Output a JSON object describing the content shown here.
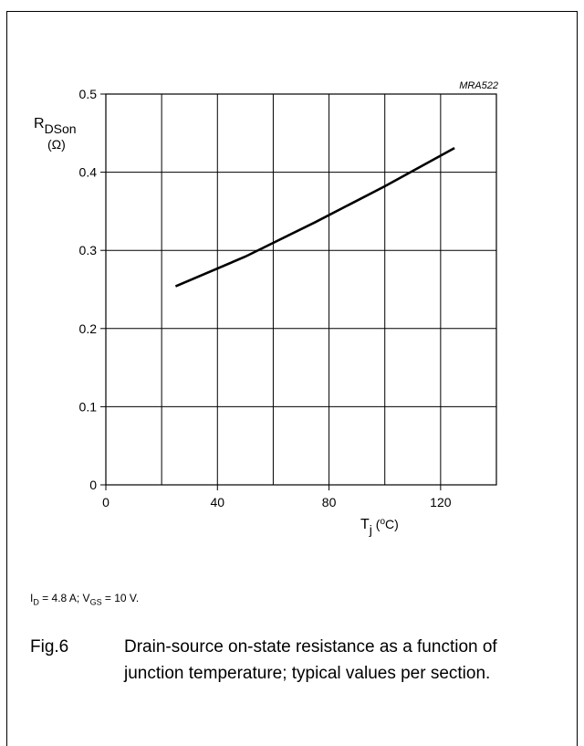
{
  "chart_data": {
    "type": "line",
    "code": "MRA522",
    "ylabel_main": "R",
    "ylabel_sub": "DSon",
    "ylabel_unit": "(Ω)",
    "xlabel_main": "T",
    "xlabel_sub": "j",
    "xlabel_unit_open": " (",
    "xlabel_unit_sup": "o",
    "xlabel_unit_close": "C)",
    "xlim": [
      0,
      140
    ],
    "ylim": [
      0,
      0.5
    ],
    "x_ticks": [
      {
        "value": 0,
        "label": "0"
      },
      {
        "value": 40,
        "label": "40"
      },
      {
        "value": 80,
        "label": "80"
      },
      {
        "value": 120,
        "label": "120"
      }
    ],
    "x_grid": [
      20,
      40,
      60,
      80,
      100,
      120
    ],
    "y_ticks": [
      {
        "value": 0,
        "label": "0"
      },
      {
        "value": 0.1,
        "label": "0.1"
      },
      {
        "value": 0.2,
        "label": "0.2"
      },
      {
        "value": 0.3,
        "label": "0.3"
      },
      {
        "value": 0.4,
        "label": "0.4"
      },
      {
        "value": 0.5,
        "label": "0.5"
      }
    ],
    "series": [
      {
        "x": [
          25,
          50,
          75,
          100,
          125
        ],
        "y": [
          0.254,
          0.292,
          0.336,
          0.382,
          0.431
        ]
      }
    ]
  },
  "conditions": {
    "i_main": "I",
    "i_sub": "D",
    "i_rest": " = 4.8 A; V",
    "v_sub": "GS",
    "v_rest": " = 10 V."
  },
  "caption": {
    "number": "Fig.6",
    "text": "Drain-source on-state resistance as a function of junction temperature; typical values per section."
  }
}
